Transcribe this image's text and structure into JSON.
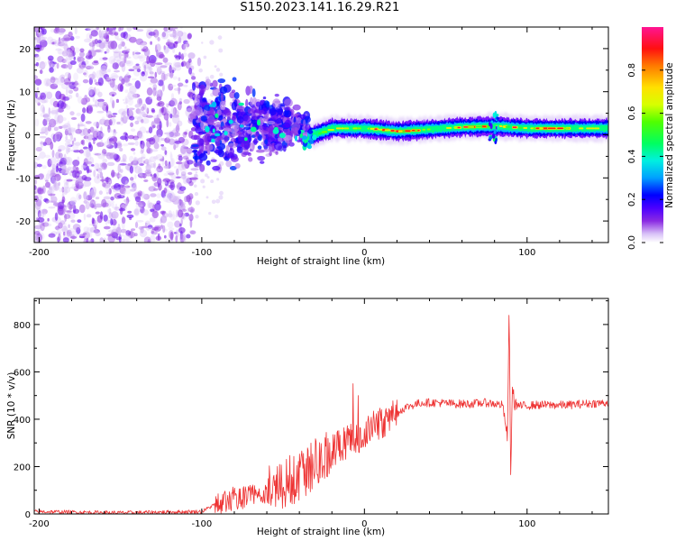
{
  "title": "S150.2023.141.16.29.R21",
  "chart_data": [
    {
      "type": "heatmap",
      "xlabel": "Height of straight line (km)",
      "ylabel": "Frequency (Hz)",
      "xlim": [
        -203,
        150
      ],
      "ylim": [
        -25,
        25
      ],
      "xticks": [
        -200,
        -100,
        0,
        100
      ],
      "yticks": [
        -20,
        -10,
        0,
        10,
        20
      ],
      "colorbar": {
        "label": "Normalized spectral amplitude",
        "range": [
          0,
          1
        ],
        "ticks": [
          0.0,
          0.2,
          0.4,
          0.6,
          0.8
        ],
        "colormap": [
          "#ffffff",
          "#c9a8f5",
          "#8a2be2",
          "#5b00ff",
          "#0000ff",
          "#00b7ff",
          "#00ffd0",
          "#00ff00",
          "#d7ff00",
          "#ffff00",
          "#ff8c00",
          "#ff0000",
          "#ff1493"
        ]
      },
      "regions": [
        {
          "x_range": [
            -203,
            -105
          ],
          "freq_range": [
            -25,
            25
          ],
          "pattern": "scattered noise",
          "amplitude": [
            0.05,
            0.3
          ]
        },
        {
          "x_range": [
            -105,
            -35
          ],
          "freq_range": [
            -15,
            10
          ],
          "pattern": "clustered blobs",
          "amplitude": [
            0.1,
            0.45
          ]
        },
        {
          "x_range": [
            -35,
            150
          ],
          "freq_range": [
            -1,
            3
          ],
          "pattern": "narrow band",
          "amplitude": [
            0.2,
            1.0
          ]
        }
      ],
      "band_center_hz": [
        {
          "x": -35,
          "f": -0.5
        },
        {
          "x": -20,
          "f": 1.5
        },
        {
          "x": 0,
          "f": 1.5
        },
        {
          "x": 20,
          "f": 0.8
        },
        {
          "x": 60,
          "f": 1.8
        },
        {
          "x": 80,
          "f": 2.0
        },
        {
          "x": 100,
          "f": 1.5
        },
        {
          "x": 150,
          "f": 1.5
        }
      ],
      "peak_regions": [
        {
          "x_range": [
            5,
            30
          ],
          "amplitude": 1.0
        },
        {
          "x_range": [
            55,
            75
          ],
          "amplitude": 1.0
        },
        {
          "x_range": [
            85,
            95
          ],
          "amplitude": 1.0
        },
        {
          "x_range": [
            105,
            125
          ],
          "amplitude": 1.0
        }
      ]
    },
    {
      "type": "line",
      "xlabel": "Height of straight line (km)",
      "ylabel": "SNR (10 * v/v)",
      "xlim": [
        -203,
        150
      ],
      "ylim": [
        0,
        910
      ],
      "xticks": [
        -200,
        -100,
        0,
        100
      ],
      "yticks": [
        0,
        200,
        400,
        600,
        800
      ],
      "series": [
        {
          "color": "#ee3333",
          "x": [
            -203,
            -150,
            -100,
            -92,
            -85,
            -75,
            -65,
            -55,
            -45,
            -35,
            -25,
            -15,
            -5,
            5,
            15,
            25,
            35,
            45,
            55,
            65,
            75,
            85,
            88,
            89,
            90,
            91,
            92,
            95,
            105,
            115,
            125,
            135,
            150
          ],
          "y": [
            10,
            5,
            10,
            40,
            60,
            70,
            85,
            110,
            140,
            190,
            240,
            290,
            320,
            370,
            400,
            450,
            470,
            470,
            465,
            465,
            470,
            460,
            320,
            880,
            130,
            560,
            470,
            455,
            460,
            460,
            460,
            465,
            470
          ],
          "noise_amplitude": [
            {
              "x_range": [
                -203,
                -92
              ],
              "amp": 8
            },
            {
              "x_range": [
                -92,
                -60
              ],
              "amp": 50
            },
            {
              "x_range": [
                -60,
                -20
              ],
              "amp": 110
            },
            {
              "x_range": [
                -20,
                20
              ],
              "amp": 70
            },
            {
              "x_range": [
                20,
                150
              ],
              "amp": 18
            }
          ],
          "notable_spikes": [
            {
              "x": -7,
              "y": 550
            },
            {
              "x": -4,
              "y": 500
            }
          ]
        }
      ]
    }
  ]
}
